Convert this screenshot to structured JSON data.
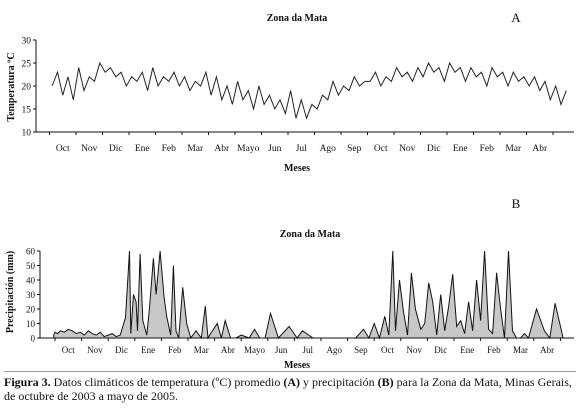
{
  "caption": {
    "label": "Figura 3.",
    "part1": " Datos climáticos de temperatura (ºC) promedio ",
    "tagA": "(A)",
    "part2": " y precipitación ",
    "tagB": "(B)",
    "part3": " para la Zona da Mata, Minas Gerais, de octubre de 2003 a mayo de 2005."
  },
  "chart_data": [
    {
      "type": "line",
      "panel": "A",
      "title": "Zona da Mata",
      "xlabel": "Meses",
      "ylabel": "Temperatura ºC",
      "ylim": [
        10,
        30
      ],
      "yticks": [
        10,
        15,
        20,
        25,
        30
      ],
      "month_labels": [
        "Oct",
        "Nov",
        "Dic",
        "Ene",
        "Feb",
        "Mar",
        "Abr",
        "Mayo",
        "Jun",
        "Jul",
        "Ago",
        "Sep",
        "Oct",
        "Nov",
        "Dic",
        "Ene",
        "Feb",
        "Mar",
        "Abr"
      ],
      "x_month_index": [
        -0.4,
        -0.2,
        0.0,
        0.2,
        0.4,
        0.6,
        0.8,
        1.0,
        1.2,
        1.4,
        1.6,
        1.8,
        2.0,
        2.2,
        2.4,
        2.6,
        2.8,
        3.0,
        3.2,
        3.4,
        3.6,
        3.8,
        4.0,
        4.2,
        4.4,
        4.6,
        4.8,
        5.0,
        5.2,
        5.4,
        5.6,
        5.8,
        6.0,
        6.2,
        6.4,
        6.6,
        6.8,
        7.0,
        7.2,
        7.4,
        7.6,
        7.8,
        8.0,
        8.2,
        8.4,
        8.6,
        8.8,
        9.0,
        9.2,
        9.4,
        9.6,
        9.8,
        10.0,
        10.2,
        10.4,
        10.6,
        10.8,
        11.0,
        11.2,
        11.4,
        11.6,
        11.8,
        12.0,
        12.2,
        12.4,
        12.6,
        12.8,
        13.0,
        13.2,
        13.4,
        13.6,
        13.8,
        14.0,
        14.2,
        14.4,
        14.6,
        14.8,
        15.0,
        15.2,
        15.4,
        15.6,
        15.8,
        16.0,
        16.2,
        16.4,
        16.6,
        16.8,
        17.0,
        17.2,
        17.4,
        17.6,
        17.8,
        18.0,
        18.2,
        18.4,
        18.6,
        18.8,
        19.0
      ],
      "values": [
        20,
        23,
        18,
        22,
        17,
        24,
        19,
        22,
        21,
        25,
        23,
        24,
        22,
        23,
        20,
        22,
        21,
        23,
        19,
        24,
        20,
        22,
        21,
        23,
        20,
        22,
        19,
        21,
        20,
        23,
        18,
        22,
        17,
        20,
        16,
        21,
        17,
        19,
        15,
        20,
        16,
        18,
        15,
        17,
        14,
        19,
        13,
        17,
        13,
        16,
        15,
        18,
        17,
        21,
        18,
        20,
        19,
        22,
        20,
        21,
        21,
        23,
        20,
        22,
        21,
        24,
        22,
        23,
        21,
        24,
        22,
        25,
        23,
        24,
        21,
        25,
        23,
        24,
        21,
        24,
        22,
        23,
        20,
        24,
        22,
        23,
        20,
        23,
        21,
        22,
        20,
        22,
        19,
        21,
        17,
        20,
        16,
        19
      ],
      "series": [
        {
          "name": "",
          "color": "#222222"
        }
      ],
      "grid": false,
      "panel_label": "A"
    },
    {
      "type": "area",
      "panel": "B",
      "title": "Zona da Mata",
      "xlabel": "Meses",
      "ylabel": "Precipitación (mm)",
      "ylim": [
        0,
        60
      ],
      "yticks": [
        0,
        10,
        20,
        30,
        40,
        50,
        60
      ],
      "month_labels": [
        "Oct",
        "Nov",
        "Dic",
        "Ene",
        "Feb",
        "Mar",
        "Abr",
        "Mayo",
        "Jun",
        "Jul",
        "Ago",
        "Sep",
        "Oct",
        "Nov",
        "Dic",
        "Ene",
        "Feb",
        "Mar",
        "Abr"
      ],
      "x_month_index": [
        -0.55,
        -0.5,
        -0.4,
        -0.3,
        -0.15,
        0.0,
        0.15,
        0.3,
        0.45,
        0.6,
        0.75,
        0.9,
        1.05,
        1.2,
        1.35,
        1.5,
        1.65,
        1.8,
        1.95,
        2.05,
        2.15,
        2.3,
        2.35,
        2.45,
        2.55,
        2.6,
        2.7,
        2.8,
        2.95,
        3.05,
        3.2,
        3.3,
        3.45,
        3.6,
        3.7,
        3.85,
        3.95,
        4.05,
        4.15,
        4.3,
        4.45,
        4.6,
        4.8,
        5.0,
        5.15,
        5.25,
        5.35,
        5.6,
        5.75,
        5.9,
        6.1,
        6.3,
        6.5,
        6.8,
        7.0,
        7.2,
        7.4,
        7.6,
        7.9,
        8.3,
        8.6,
        8.8,
        9.2,
        9.6,
        10.0,
        10.4,
        10.8,
        11.1,
        11.3,
        11.5,
        11.7,
        11.9,
        12.05,
        12.2,
        12.3,
        12.45,
        12.6,
        12.75,
        12.9,
        13.05,
        13.25,
        13.4,
        13.55,
        13.7,
        13.85,
        14.0,
        14.15,
        14.3,
        14.45,
        14.6,
        14.75,
        14.9,
        15.05,
        15.2,
        15.35,
        15.5,
        15.65,
        15.8,
        15.95,
        16.1,
        16.25,
        16.4,
        16.55,
        16.7,
        16.85,
        17.0,
        17.15,
        17.3,
        17.6,
        17.9,
        18.1,
        18.3,
        18.6,
        18.8
      ],
      "values": [
        2,
        4,
        3,
        5,
        4,
        6,
        5,
        3,
        4,
        2,
        5,
        3,
        2,
        4,
        1,
        2,
        3,
        1,
        2,
        8,
        14,
        60,
        3,
        30,
        25,
        5,
        58,
        12,
        2,
        20,
        55,
        30,
        60,
        28,
        15,
        2,
        50,
        5,
        0,
        35,
        10,
        0,
        5,
        0,
        22,
        0,
        3,
        10,
        0,
        12,
        0,
        0,
        2,
        0,
        6,
        0,
        0,
        17,
        0,
        8,
        0,
        5,
        0,
        0,
        0,
        0,
        0,
        6,
        0,
        10,
        0,
        15,
        2,
        60,
        5,
        40,
        18,
        2,
        45,
        20,
        6,
        10,
        38,
        25,
        2,
        30,
        5,
        22,
        44,
        8,
        12,
        3,
        25,
        5,
        40,
        12,
        60,
        6,
        3,
        45,
        20,
        0,
        60,
        5,
        0,
        0,
        3,
        0,
        20,
        5,
        0,
        24,
        0,
        0
      ],
      "series": [
        {
          "name": "",
          "color": "#111111",
          "fill": "#c8c8c8"
        }
      ],
      "grid": false,
      "panel_label": "B"
    }
  ]
}
